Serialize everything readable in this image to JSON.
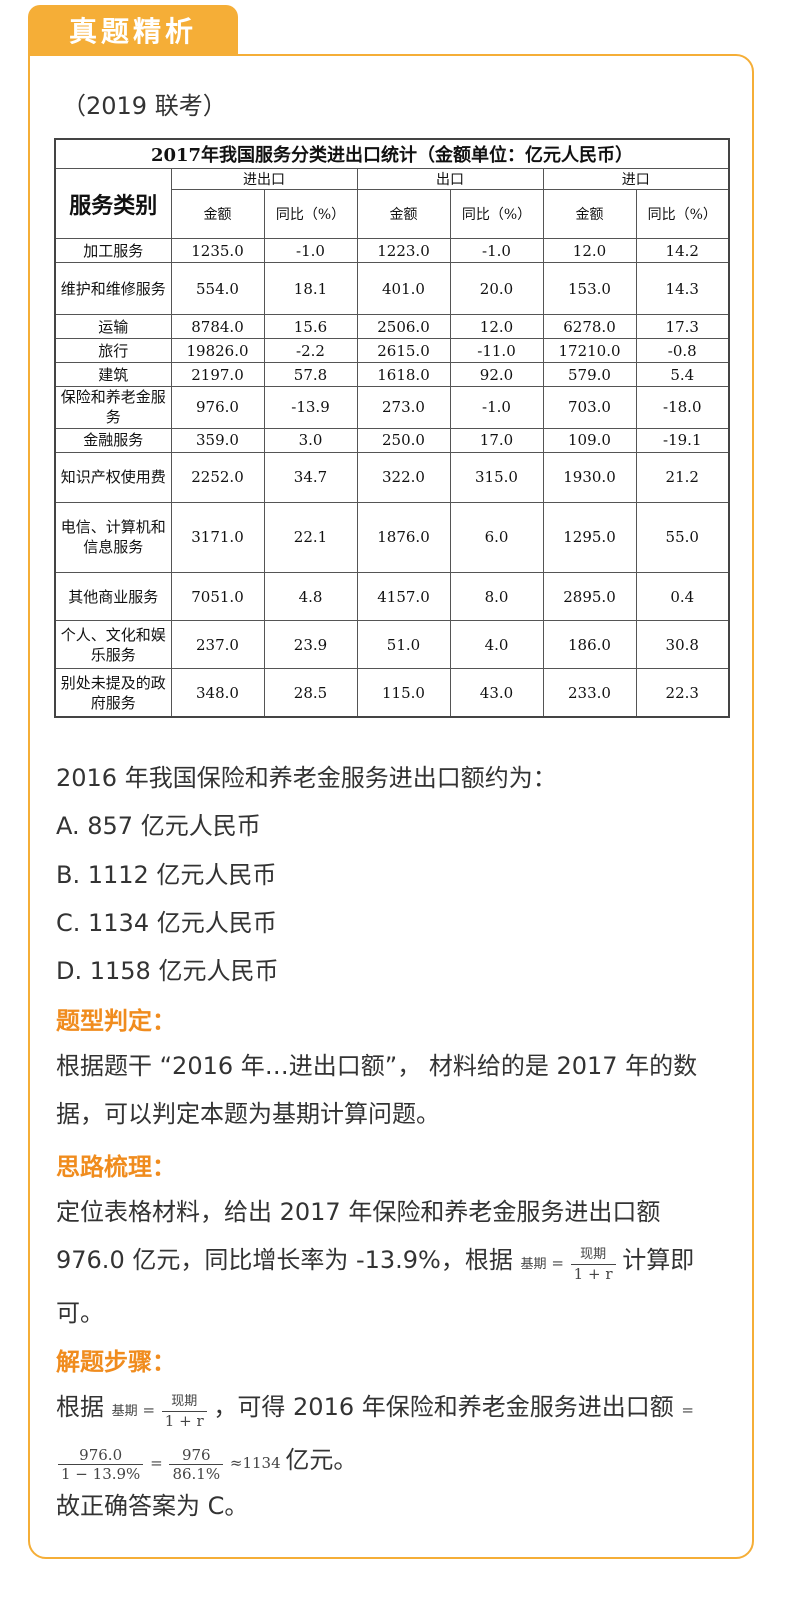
{
  "header": {
    "tab_title": "真题精析"
  },
  "source": "（2019 联考）",
  "table": {
    "caption": "2017年我国服务分类进出口统计（金额单位：亿元人民币）",
    "row_header": "服务类别",
    "groups": [
      "进出口",
      "出口",
      "进口"
    ],
    "subheaders": [
      "金额",
      "同比（%）",
      "金额",
      "同比（%）",
      "金额",
      "同比（%）"
    ],
    "rows": [
      {
        "cat": "加工服务",
        "v": [
          "1235.0",
          "-1.0",
          "1223.0",
          "-1.0",
          "12.0",
          "14.2"
        ]
      },
      {
        "cat": "维护和维修服务",
        "v": [
          "554.0",
          "18.1",
          "401.0",
          "20.0",
          "153.0",
          "14.3"
        ]
      },
      {
        "cat": "运输",
        "v": [
          "8784.0",
          "15.6",
          "2506.0",
          "12.0",
          "6278.0",
          "17.3"
        ]
      },
      {
        "cat": "旅行",
        "v": [
          "19826.0",
          "-2.2",
          "2615.0",
          "-11.0",
          "17210.0",
          "-0.8"
        ]
      },
      {
        "cat": "建筑",
        "v": [
          "2197.0",
          "57.8",
          "1618.0",
          "92.0",
          "579.0",
          "5.4"
        ]
      },
      {
        "cat": "保险和养老金服务",
        "v": [
          "976.0",
          "-13.9",
          "273.0",
          "-1.0",
          "703.0",
          "-18.0"
        ]
      },
      {
        "cat": "金融服务",
        "v": [
          "359.0",
          "3.0",
          "250.0",
          "17.0",
          "109.0",
          "-19.1"
        ]
      },
      {
        "cat": "知识产权使用费",
        "v": [
          "2252.0",
          "34.7",
          "322.0",
          "315.0",
          "1930.0",
          "21.2"
        ]
      },
      {
        "cat": "电信、计算机和信息服务",
        "v": [
          "3171.0",
          "22.1",
          "1876.0",
          "6.0",
          "1295.0",
          "55.0"
        ]
      },
      {
        "cat": "其他商业服务",
        "v": [
          "7051.0",
          "4.8",
          "4157.0",
          "8.0",
          "2895.0",
          "0.4"
        ]
      },
      {
        "cat": "个人、文化和娱乐服务",
        "v": [
          "237.0",
          "23.9",
          "51.0",
          "4.0",
          "186.0",
          "30.8"
        ]
      },
      {
        "cat": "别处未提及的政府服务",
        "v": [
          "348.0",
          "28.5",
          "115.0",
          "43.0",
          "233.0",
          "22.3"
        ]
      }
    ]
  },
  "question": {
    "stem": "2016 年我国保险和养老金服务进出口额约为：",
    "options": [
      "A. 857 亿元人民币",
      "B. 1112 亿元人民币",
      "C. 1134 亿元人民币",
      "D. 1158 亿元人民币"
    ]
  },
  "analysis": {
    "type_heading": "题型判定：",
    "type_text": "根据题干 “2016 年…进出口额”， 材料给的是 2017 年的数据，可以判定本题为基期计算问题。",
    "idea_heading": "思路梳理：",
    "idea_text_before": "定位表格材料，给出 2017 年保险和养老金服务进出口额 976.0 亿元，同比增长率为 -13.9%，根据",
    "idea_text_after": "计算即可。",
    "steps_heading": "解题步骤：",
    "steps_text_1": "根据",
    "steps_text_2": "，可得 2016 年保险和养老金服务进出口额",
    "steps_unit": "亿元。",
    "answer": "故正确答案为 C。"
  },
  "formula": {
    "base_label": "基期",
    "eq": "=",
    "cur_label": "现期",
    "denominator": "1 + r",
    "num1": "976.0",
    "den1": "1 − 13.9%",
    "num2": "976",
    "den2": "86.1%",
    "approx": "≈1134"
  }
}
